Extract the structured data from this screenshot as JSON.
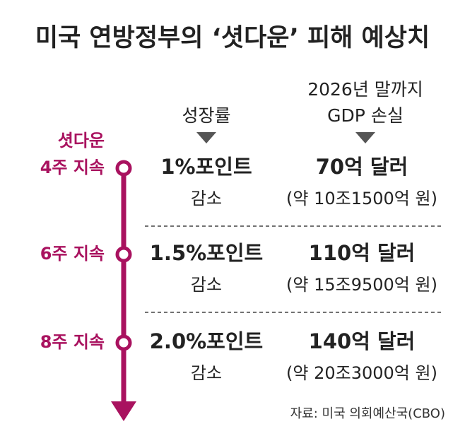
{
  "title": "미국 연방정부의 ‘셧다운’ 피해 예상치",
  "timeline_label": "셧다운",
  "columns": {
    "growth": "성장률",
    "loss": [
      "2026년 말까지",
      "GDP 손실"
    ]
  },
  "rows": [
    {
      "label": "4주 지속",
      "growth": "1%포인트",
      "growth_note": "감소",
      "loss": "70억 달러",
      "loss_note": "(약 10조1500억 원)"
    },
    {
      "label": "6주 지속",
      "growth": "1.5%포인트",
      "growth_note": "감소",
      "loss": "110억 달러",
      "loss_note": "(약 15조9500억 원)"
    },
    {
      "label": "8주 지속",
      "growth": "2.0%포인트",
      "growth_note": "감소",
      "loss": "140억 달러",
      "loss_note": "(약 20조3000억 원)"
    }
  ],
  "source": "자료: 미국 의회예산국(CBO)"
}
